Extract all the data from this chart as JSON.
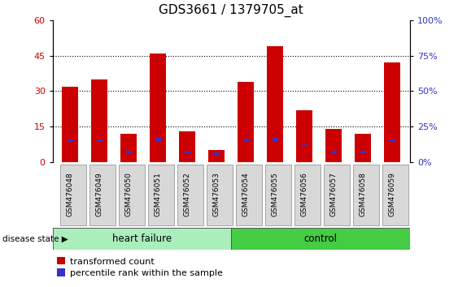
{
  "title": "GDS3661 / 1379705_at",
  "samples": [
    "GSM476048",
    "GSM476049",
    "GSM476050",
    "GSM476051",
    "GSM476052",
    "GSM476053",
    "GSM476054",
    "GSM476055",
    "GSM476056",
    "GSM476057",
    "GSM476058",
    "GSM476059"
  ],
  "transformed_count": [
    32,
    35,
    12,
    46,
    13,
    5,
    34,
    49,
    22,
    14,
    12,
    42
  ],
  "percentile_rank": [
    15,
    15,
    7,
    16,
    7,
    6,
    15.5,
    16,
    12,
    7,
    7,
    15
  ],
  "percentile_height": [
    1.8,
    1.8,
    1.5,
    1.8,
    1.5,
    1.2,
    1.8,
    1.8,
    1.5,
    1.5,
    1.5,
    1.8
  ],
  "heart_failure_count": 6,
  "control_count": 6,
  "ylim_left": [
    0,
    60
  ],
  "ylim_right": [
    0,
    100
  ],
  "yticks_left": [
    0,
    15,
    30,
    45,
    60
  ],
  "yticks_right": [
    0,
    25,
    50,
    75,
    100
  ],
  "bar_color_red": "#cc0000",
  "bar_color_blue": "#3333cc",
  "heart_failure_color": "#aaeebb",
  "control_color": "#44cc44",
  "bar_width": 0.55,
  "legend_red_label": "transformed count",
  "legend_blue_label": "percentile rank within the sample",
  "disease_state_label": "disease state",
  "heart_failure_label": "heart failure",
  "control_label": "control",
  "title_fontsize": 11,
  "tick_fontsize": 8,
  "label_fontsize": 9,
  "xtick_bg": "#d8d8d8"
}
